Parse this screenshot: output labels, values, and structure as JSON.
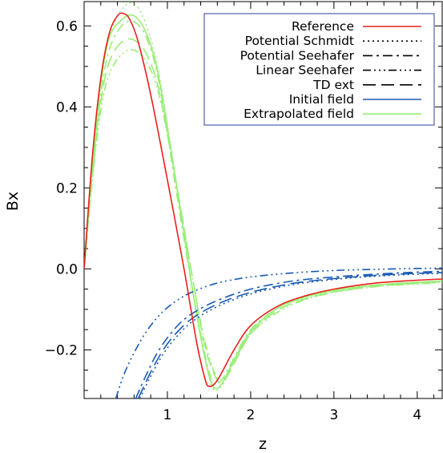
{
  "chart_data": {
    "type": "line",
    "title": "",
    "xlabel": "z",
    "ylabel": "Bx",
    "xlim": [
      0.0,
      4.3
    ],
    "ylim": [
      -0.32,
      0.66
    ],
    "x_ticks": [
      1,
      2,
      3,
      4
    ],
    "x_tick_labels": [
      "1",
      "2",
      "3",
      "4"
    ],
    "y_ticks": [
      -0.2,
      0.0,
      0.2,
      0.4,
      0.6
    ],
    "y_tick_labels": [
      "−0.2",
      "0.0",
      "0.2",
      "0.4",
      "0.6"
    ],
    "grid": false,
    "legend_position": "top-right",
    "legend": [
      {
        "label": "Reference",
        "color": "#e8201c",
        "dash": "solid"
      },
      {
        "label": "Potential Schmidt",
        "color": "#000000",
        "dash": "dotted"
      },
      {
        "label": "Potential Seehafer",
        "color": "#000000",
        "dash": "dashdot"
      },
      {
        "label": "Linear Seehafer",
        "color": "#000000",
        "dash": "dashdotdotdot"
      },
      {
        "label": "TD ext",
        "color": "#000000",
        "dash": "longdash"
      },
      {
        "label": "Initial field",
        "color": "#1a5ab4",
        "dash": "solid"
      },
      {
        "label": "Extrapolated field",
        "color": "#99ee77",
        "dash": "solid"
      }
    ],
    "series": [
      {
        "name": "Reference",
        "color": "#e8201c",
        "dash": "solid",
        "x": [
          0.0,
          0.1,
          0.2,
          0.3,
          0.4,
          0.48,
          0.55,
          0.65,
          0.8,
          1.0,
          1.2,
          1.35,
          1.45,
          1.5,
          1.6,
          1.8,
          2.0,
          2.3,
          2.6,
          3.0,
          3.5,
          4.0,
          4.3
        ],
        "y": [
          0.0,
          0.28,
          0.47,
          0.58,
          0.625,
          0.63,
          0.615,
          0.56,
          0.43,
          0.22,
          0.0,
          -0.18,
          -0.27,
          -0.29,
          -0.275,
          -0.2,
          -0.14,
          -0.095,
          -0.07,
          -0.05,
          -0.035,
          -0.028,
          -0.025
        ]
      },
      {
        "name": "Potential Schmidt",
        "color": "#99ee77",
        "dash": "dotted",
        "x": [
          0.0,
          0.1,
          0.2,
          0.3,
          0.45,
          0.6,
          0.75,
          0.9,
          1.1,
          1.3,
          1.45,
          1.55,
          1.65,
          1.8,
          2.0,
          2.3,
          2.6,
          3.0,
          3.5,
          4.0,
          4.3
        ],
        "y": [
          0.0,
          0.25,
          0.45,
          0.57,
          0.64,
          0.655,
          0.6,
          0.48,
          0.22,
          -0.05,
          -0.22,
          -0.295,
          -0.29,
          -0.23,
          -0.16,
          -0.1,
          -0.075,
          -0.055,
          -0.04,
          -0.033,
          -0.03
        ]
      },
      {
        "name": "Potential Seehafer",
        "color": "#99ee77",
        "dash": "dashdot",
        "x": [
          0.0,
          0.1,
          0.2,
          0.3,
          0.45,
          0.6,
          0.75,
          0.9,
          1.1,
          1.3,
          1.45,
          1.55,
          1.65,
          1.8,
          2.0,
          2.3,
          2.6,
          3.0,
          3.5,
          4.0,
          4.3
        ],
        "y": [
          0.0,
          0.24,
          0.43,
          0.54,
          0.6,
          0.61,
          0.57,
          0.46,
          0.2,
          -0.05,
          -0.21,
          -0.28,
          -0.275,
          -0.22,
          -0.15,
          -0.1,
          -0.072,
          -0.052,
          -0.04,
          -0.034,
          -0.031
        ]
      },
      {
        "name": "Linear Seehafer",
        "color": "#99ee77",
        "dash": "dashdotdotdot",
        "x": [
          0.0,
          0.1,
          0.2,
          0.3,
          0.45,
          0.6,
          0.75,
          0.9,
          1.1,
          1.3,
          1.45,
          1.6,
          1.7,
          1.85,
          2.0,
          2.3,
          2.6,
          3.0,
          3.5,
          4.0,
          4.3
        ],
        "y": [
          0.0,
          0.22,
          0.39,
          0.48,
          0.53,
          0.54,
          0.51,
          0.43,
          0.22,
          -0.02,
          -0.18,
          -0.27,
          -0.265,
          -0.21,
          -0.16,
          -0.11,
          -0.08,
          -0.058,
          -0.044,
          -0.037,
          -0.034
        ]
      },
      {
        "name": "TD ext",
        "color": "#99ee77",
        "dash": "longdash",
        "x": [
          0.0,
          0.1,
          0.2,
          0.3,
          0.45,
          0.6,
          0.75,
          0.9,
          1.1,
          1.3,
          1.45,
          1.6,
          1.7,
          1.85,
          2.0,
          2.3,
          2.6,
          3.0,
          3.5,
          4.0,
          4.3
        ],
        "y": [
          0.0,
          0.23,
          0.41,
          0.51,
          0.56,
          0.565,
          0.53,
          0.44,
          0.22,
          -0.02,
          -0.19,
          -0.275,
          -0.27,
          -0.215,
          -0.16,
          -0.105,
          -0.078,
          -0.057,
          -0.043,
          -0.036,
          -0.033
        ]
      },
      {
        "name": "Extrapolated field",
        "color": "#99ee77",
        "dash": "solid",
        "x": [
          0.0,
          0.1,
          0.2,
          0.3,
          0.45,
          0.6,
          0.75,
          0.9,
          1.1,
          1.3,
          1.45,
          1.55,
          1.65,
          1.8,
          2.0,
          2.3,
          2.6,
          3.0,
          3.5,
          4.0,
          4.3
        ],
        "y": [
          0.0,
          0.26,
          0.46,
          0.57,
          0.615,
          0.625,
          0.58,
          0.47,
          0.22,
          -0.05,
          -0.22,
          -0.29,
          -0.285,
          -0.225,
          -0.155,
          -0.1,
          -0.073,
          -0.053,
          -0.04,
          -0.033,
          -0.03
        ]
      },
      {
        "name": "Initial field",
        "color": "#1a5ab4",
        "dash": "dashdotdotdot",
        "x": [
          0.38,
          0.5,
          0.7,
          0.9,
          1.1,
          1.3,
          1.6,
          2.0,
          2.5,
          3.0,
          3.5,
          4.0,
          4.3
        ],
        "y": [
          -0.32,
          -0.25,
          -0.17,
          -0.115,
          -0.08,
          -0.057,
          -0.035,
          -0.02,
          -0.01,
          -0.004,
          -0.001,
          0.001,
          0.002
        ]
      },
      {
        "name": "Initial field",
        "color": "#1a5ab4",
        "dash": "dashdot",
        "x": [
          0.62,
          0.75,
          0.9,
          1.1,
          1.3,
          1.6,
          2.0,
          2.5,
          3.0,
          3.5,
          4.0,
          4.3
        ],
        "y": [
          -0.32,
          -0.26,
          -0.2,
          -0.145,
          -0.11,
          -0.078,
          -0.05,
          -0.03,
          -0.02,
          -0.013,
          -0.008,
          -0.006
        ]
      },
      {
        "name": "Initial field",
        "color": "#1a5ab4",
        "dash": "longdash",
        "x": [
          0.65,
          0.8,
          0.95,
          1.1,
          1.3,
          1.6,
          2.0,
          2.5,
          3.0,
          3.5,
          4.0,
          4.3
        ],
        "y": [
          -0.32,
          -0.255,
          -0.2,
          -0.16,
          -0.122,
          -0.087,
          -0.058,
          -0.036,
          -0.024,
          -0.016,
          -0.011,
          -0.009
        ]
      },
      {
        "name": "Initial field",
        "color": "#1a5ab4",
        "dash": "dotted",
        "x": [
          0.67,
          0.8,
          0.95,
          1.1,
          1.3,
          1.6,
          2.0,
          2.5,
          3.0,
          3.5,
          4.0,
          4.3
        ],
        "y": [
          -0.32,
          -0.265,
          -0.21,
          -0.17,
          -0.13,
          -0.093,
          -0.062,
          -0.039,
          -0.026,
          -0.018,
          -0.013,
          -0.011
        ]
      }
    ]
  }
}
